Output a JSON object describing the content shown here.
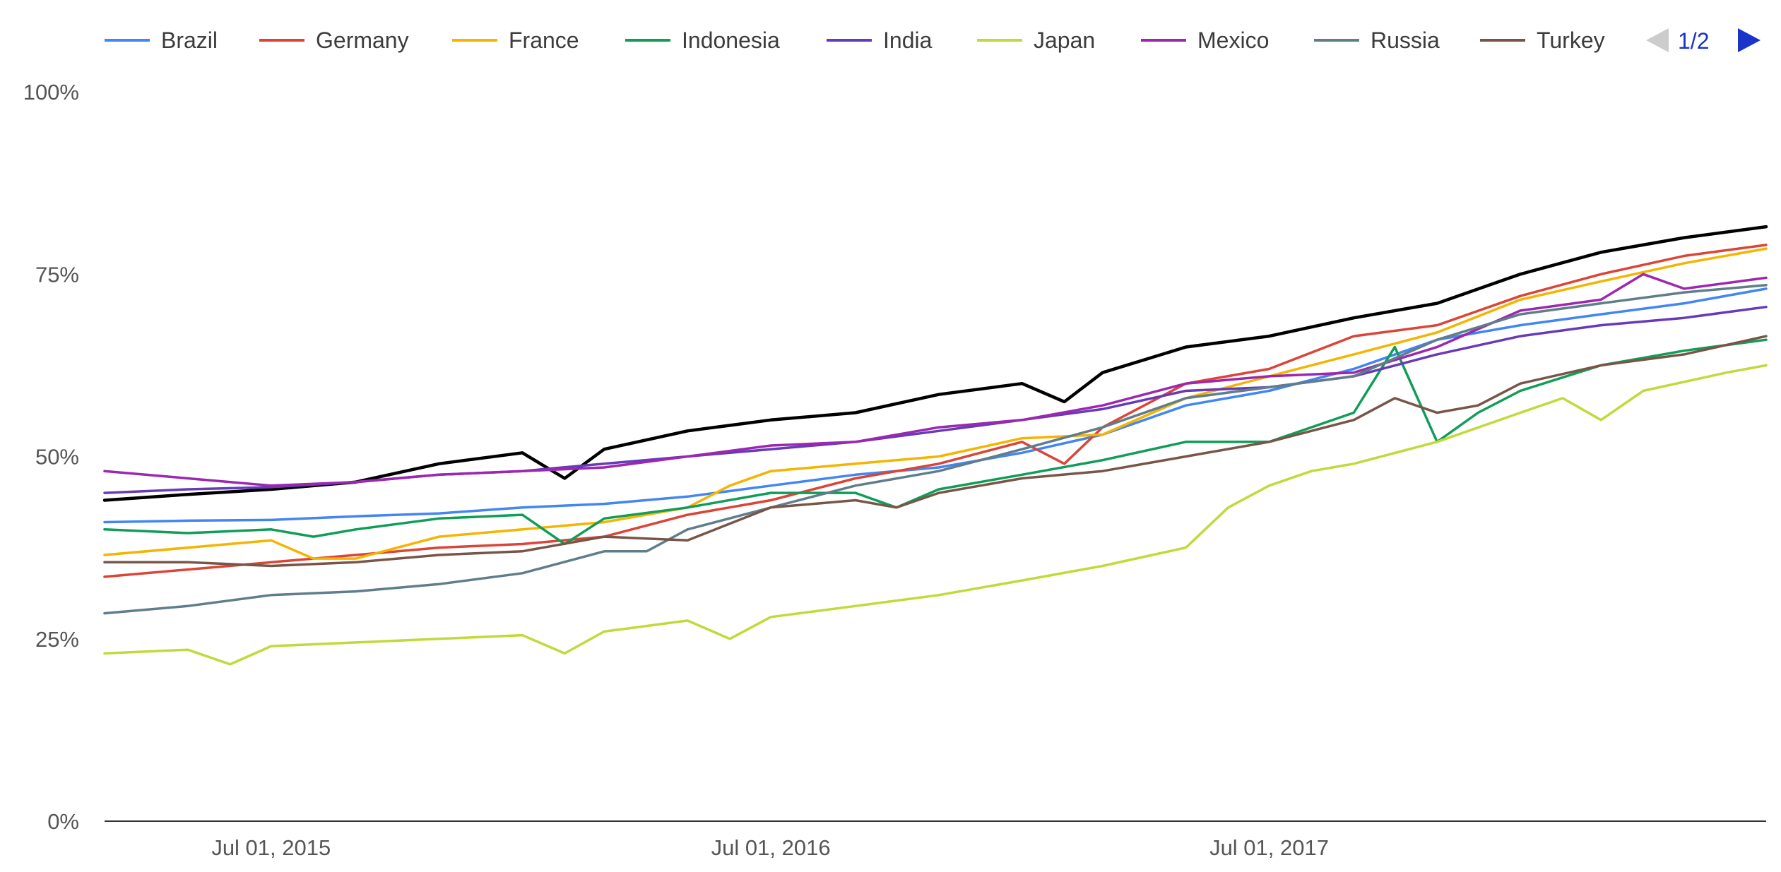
{
  "chart_data": {
    "type": "line",
    "title": "",
    "xlabel": "",
    "ylabel": "",
    "ylim": [
      0,
      100
    ],
    "xlim": [
      "2015-03-01",
      "2018-06-30"
    ],
    "grid": false,
    "legend_position": "top",
    "legend_page": "1/2",
    "y_ticks": [
      "0%",
      "25%",
      "50%",
      "75%",
      "100%"
    ],
    "y_tick_values": [
      0,
      25,
      50,
      75,
      100
    ],
    "x_ticks": [
      "Jul 01, 2015",
      "Jul 01, 2016",
      "Jul 01, 2017"
    ],
    "x_tick_dates": [
      "2015-07-01",
      "2016-07-01",
      "2017-07-01"
    ],
    "series": [
      {
        "name": "",
        "color": "#000000",
        "points": [
          [
            "2015-03-01",
            44
          ],
          [
            "2015-05-01",
            44.8
          ],
          [
            "2015-07-01",
            45.5
          ],
          [
            "2015-09-01",
            46.5
          ],
          [
            "2015-11-01",
            49
          ],
          [
            "2016-01-01",
            50.5
          ],
          [
            "2016-02-01",
            47
          ],
          [
            "2016-03-01",
            51
          ],
          [
            "2016-05-01",
            53.5
          ],
          [
            "2016-07-01",
            55
          ],
          [
            "2016-09-01",
            56
          ],
          [
            "2016-11-01",
            58.5
          ],
          [
            "2017-01-01",
            60
          ],
          [
            "2017-02-01",
            57.5
          ],
          [
            "2017-03-01",
            61.5
          ],
          [
            "2017-05-01",
            65
          ],
          [
            "2017-07-01",
            66.5
          ],
          [
            "2017-09-01",
            69
          ],
          [
            "2017-11-01",
            71
          ],
          [
            "2018-01-01",
            75
          ],
          [
            "2018-03-01",
            78
          ],
          [
            "2018-05-01",
            80
          ],
          [
            "2018-06-30",
            81.5
          ]
        ]
      },
      {
        "name": "Brazil",
        "color": "#4285f4",
        "points": [
          [
            "2015-03-01",
            41
          ],
          [
            "2015-05-01",
            41.2
          ],
          [
            "2015-07-01",
            41.3
          ],
          [
            "2015-09-01",
            41.8
          ],
          [
            "2015-11-01",
            42.2
          ],
          [
            "2016-01-01",
            43
          ],
          [
            "2016-03-01",
            43.5
          ],
          [
            "2016-05-01",
            44.5
          ],
          [
            "2016-07-01",
            46
          ],
          [
            "2016-09-01",
            47.5
          ],
          [
            "2016-11-01",
            48.5
          ],
          [
            "2017-01-01",
            50.5
          ],
          [
            "2017-03-01",
            53
          ],
          [
            "2017-05-01",
            57
          ],
          [
            "2017-07-01",
            59
          ],
          [
            "2017-09-01",
            62
          ],
          [
            "2017-11-01",
            66
          ],
          [
            "2018-01-01",
            68
          ],
          [
            "2018-03-01",
            69.5
          ],
          [
            "2018-05-01",
            71
          ],
          [
            "2018-06-30",
            73
          ]
        ]
      },
      {
        "name": "Germany",
        "color": "#db4437",
        "points": [
          [
            "2015-03-01",
            33.5
          ],
          [
            "2015-05-01",
            34.5
          ],
          [
            "2015-07-01",
            35.5
          ],
          [
            "2015-09-01",
            36.5
          ],
          [
            "2015-11-01",
            37.5
          ],
          [
            "2016-01-01",
            38
          ],
          [
            "2016-03-01",
            39
          ],
          [
            "2016-05-01",
            42
          ],
          [
            "2016-07-01",
            44
          ],
          [
            "2016-09-01",
            47
          ],
          [
            "2016-11-01",
            49
          ],
          [
            "2017-01-01",
            52
          ],
          [
            "2017-02-01",
            49
          ],
          [
            "2017-03-01",
            54
          ],
          [
            "2017-05-01",
            60
          ],
          [
            "2017-07-01",
            62
          ],
          [
            "2017-09-01",
            66.5
          ],
          [
            "2017-11-01",
            68
          ],
          [
            "2018-01-01",
            72
          ],
          [
            "2018-03-01",
            75
          ],
          [
            "2018-05-01",
            77.5
          ],
          [
            "2018-06-30",
            79
          ]
        ]
      },
      {
        "name": "France",
        "color": "#f4b400",
        "points": [
          [
            "2015-03-01",
            36.5
          ],
          [
            "2015-05-01",
            37.5
          ],
          [
            "2015-07-01",
            38.5
          ],
          [
            "2015-08-01",
            36
          ],
          [
            "2015-09-01",
            36
          ],
          [
            "2015-11-01",
            39
          ],
          [
            "2016-01-01",
            40
          ],
          [
            "2016-03-01",
            41
          ],
          [
            "2016-05-01",
            43
          ],
          [
            "2016-06-01",
            46
          ],
          [
            "2016-07-01",
            48
          ],
          [
            "2016-09-01",
            49
          ],
          [
            "2016-11-01",
            50
          ],
          [
            "2017-01-01",
            52.5
          ],
          [
            "2017-03-01",
            53
          ],
          [
            "2017-05-01",
            58
          ],
          [
            "2017-07-01",
            61
          ],
          [
            "2017-09-01",
            64
          ],
          [
            "2017-11-01",
            67
          ],
          [
            "2018-01-01",
            71.5
          ],
          [
            "2018-03-01",
            74
          ],
          [
            "2018-05-01",
            76.5
          ],
          [
            "2018-06-30",
            78.5
          ]
        ]
      },
      {
        "name": "Indonesia",
        "color": "#0f9d58",
        "points": [
          [
            "2015-03-01",
            40
          ],
          [
            "2015-05-01",
            39.5
          ],
          [
            "2015-07-01",
            40
          ],
          [
            "2015-08-01",
            39
          ],
          [
            "2015-09-01",
            40
          ],
          [
            "2015-11-01",
            41.5
          ],
          [
            "2016-01-01",
            42
          ],
          [
            "2016-02-01",
            38
          ],
          [
            "2016-03-01",
            41.5
          ],
          [
            "2016-05-01",
            43
          ],
          [
            "2016-07-01",
            45
          ],
          [
            "2016-09-01",
            45
          ],
          [
            "2016-10-01",
            43
          ],
          [
            "2016-11-01",
            45.5
          ],
          [
            "2017-01-01",
            47.5
          ],
          [
            "2017-03-01",
            49.5
          ],
          [
            "2017-05-01",
            52
          ],
          [
            "2017-07-01",
            52
          ],
          [
            "2017-09-01",
            56
          ],
          [
            "2017-10-01",
            65
          ],
          [
            "2017-11-01",
            52
          ],
          [
            "2017-12-01",
            56
          ],
          [
            "2018-01-01",
            59
          ],
          [
            "2018-03-01",
            62.5
          ],
          [
            "2018-05-01",
            64.5
          ],
          [
            "2018-06-30",
            66
          ]
        ]
      },
      {
        "name": "India",
        "color": "#673ab7",
        "points": [
          [
            "2015-03-01",
            45
          ],
          [
            "2015-05-01",
            45.5
          ],
          [
            "2015-07-01",
            45.8
          ],
          [
            "2015-09-01",
            46.5
          ],
          [
            "2015-11-01",
            47.5
          ],
          [
            "2016-01-01",
            48
          ],
          [
            "2016-03-01",
            49
          ],
          [
            "2016-05-01",
            50
          ],
          [
            "2016-07-01",
            51
          ],
          [
            "2016-09-01",
            52
          ],
          [
            "2016-11-01",
            53.5
          ],
          [
            "2017-01-01",
            55
          ],
          [
            "2017-03-01",
            56.5
          ],
          [
            "2017-05-01",
            59
          ],
          [
            "2017-07-01",
            59.5
          ],
          [
            "2017-09-01",
            61
          ],
          [
            "2017-11-01",
            64
          ],
          [
            "2018-01-01",
            66.5
          ],
          [
            "2018-03-01",
            68
          ],
          [
            "2018-05-01",
            69
          ],
          [
            "2018-06-30",
            70.5
          ]
        ]
      },
      {
        "name": "Japan",
        "color": "#c3d93a",
        "points": [
          [
            "2015-03-01",
            23
          ],
          [
            "2015-05-01",
            23.5
          ],
          [
            "2015-06-01",
            21.5
          ],
          [
            "2015-07-01",
            24
          ],
          [
            "2015-09-01",
            24.5
          ],
          [
            "2015-11-01",
            25
          ],
          [
            "2016-01-01",
            25.5
          ],
          [
            "2016-02-01",
            23
          ],
          [
            "2016-03-01",
            26
          ],
          [
            "2016-05-01",
            27.5
          ],
          [
            "2016-06-01",
            25
          ],
          [
            "2016-07-01",
            28
          ],
          [
            "2016-09-01",
            29.5
          ],
          [
            "2016-11-01",
            31
          ],
          [
            "2017-01-01",
            33
          ],
          [
            "2017-03-01",
            35
          ],
          [
            "2017-05-01",
            37.5
          ],
          [
            "2017-06-01",
            43
          ],
          [
            "2017-07-01",
            46
          ],
          [
            "2017-08-01",
            48
          ],
          [
            "2017-09-01",
            49
          ],
          [
            "2017-11-01",
            52
          ],
          [
            "2018-01-01",
            56
          ],
          [
            "2018-02-01",
            58
          ],
          [
            "2018-03-01",
            55
          ],
          [
            "2018-04-01",
            59
          ],
          [
            "2018-06-01",
            61.5
          ],
          [
            "2018-06-30",
            62.5
          ]
        ]
      },
      {
        "name": "Mexico",
        "color": "#9c27b0",
        "points": [
          [
            "2015-03-01",
            48
          ],
          [
            "2015-05-01",
            47
          ],
          [
            "2015-07-01",
            46
          ],
          [
            "2015-09-01",
            46.5
          ],
          [
            "2015-11-01",
            47.5
          ],
          [
            "2016-01-01",
            48
          ],
          [
            "2016-03-01",
            48.5
          ],
          [
            "2016-05-01",
            50
          ],
          [
            "2016-07-01",
            51.5
          ],
          [
            "2016-09-01",
            52
          ],
          [
            "2016-11-01",
            54
          ],
          [
            "2017-01-01",
            55
          ],
          [
            "2017-03-01",
            57
          ],
          [
            "2017-05-01",
            60
          ],
          [
            "2017-07-01",
            61
          ],
          [
            "2017-09-01",
            61.5
          ],
          [
            "2017-11-01",
            65
          ],
          [
            "2018-01-01",
            70
          ],
          [
            "2018-03-01",
            71.5
          ],
          [
            "2018-04-01",
            75
          ],
          [
            "2018-05-01",
            73
          ],
          [
            "2018-06-30",
            74.5
          ]
        ]
      },
      {
        "name": "Russia",
        "color": "#607d8b",
        "points": [
          [
            "2015-03-01",
            28.5
          ],
          [
            "2015-05-01",
            29.5
          ],
          [
            "2015-07-01",
            31
          ],
          [
            "2015-09-01",
            31.5
          ],
          [
            "2015-11-01",
            32.5
          ],
          [
            "2016-01-01",
            34
          ],
          [
            "2016-03-01",
            37
          ],
          [
            "2016-04-01",
            37
          ],
          [
            "2016-05-01",
            40
          ],
          [
            "2016-07-01",
            43
          ],
          [
            "2016-09-01",
            46
          ],
          [
            "2016-11-01",
            48
          ],
          [
            "2017-01-01",
            51
          ],
          [
            "2017-03-01",
            54
          ],
          [
            "2017-05-01",
            58
          ],
          [
            "2017-07-01",
            59.5
          ],
          [
            "2017-09-01",
            61
          ],
          [
            "2017-11-01",
            66
          ],
          [
            "2018-01-01",
            69.5
          ],
          [
            "2018-03-01",
            71
          ],
          [
            "2018-05-01",
            72.5
          ],
          [
            "2018-06-30",
            73.5
          ]
        ]
      },
      {
        "name": "Turkey",
        "color": "#795548",
        "points": [
          [
            "2015-03-01",
            35.5
          ],
          [
            "2015-05-01",
            35.5
          ],
          [
            "2015-07-01",
            35
          ],
          [
            "2015-09-01",
            35.5
          ],
          [
            "2015-11-01",
            36.5
          ],
          [
            "2016-01-01",
            37
          ],
          [
            "2016-03-01",
            39
          ],
          [
            "2016-05-01",
            38.5
          ],
          [
            "2016-07-01",
            43
          ],
          [
            "2016-09-01",
            44
          ],
          [
            "2016-10-01",
            43
          ],
          [
            "2016-11-01",
            45
          ],
          [
            "2017-01-01",
            47
          ],
          [
            "2017-03-01",
            48
          ],
          [
            "2017-05-01",
            50
          ],
          [
            "2017-07-01",
            52
          ],
          [
            "2017-09-01",
            55
          ],
          [
            "2017-10-01",
            58
          ],
          [
            "2017-11-01",
            56
          ],
          [
            "2017-12-01",
            57
          ],
          [
            "2018-01-01",
            60
          ],
          [
            "2018-03-01",
            62.5
          ],
          [
            "2018-05-01",
            64
          ],
          [
            "2018-06-30",
            66.5
          ]
        ]
      }
    ]
  }
}
